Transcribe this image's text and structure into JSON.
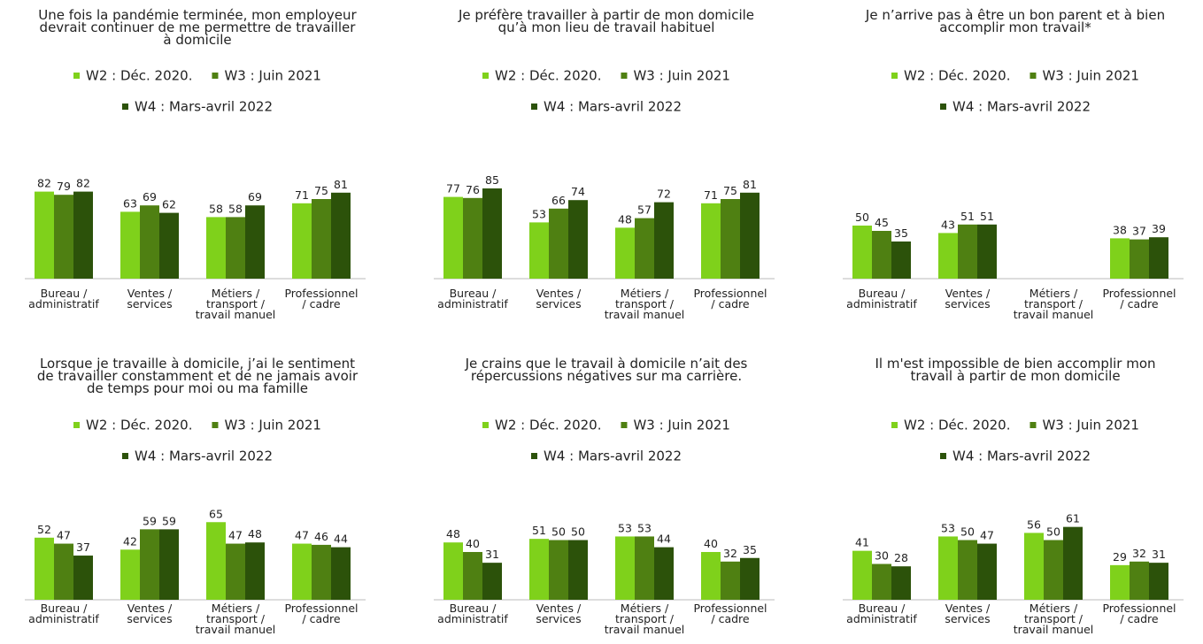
{
  "chart_data": [
    {
      "type": "bar",
      "title": "Une fois la pandémie terminée, mon employeur\ndevrait continuer de me permettre de travailler\nà domicile",
      "categories": [
        "Bureau  /\nadministratif",
        "Ventes /\nservices",
        "Métiers /\ntransport /\ntravail manuel",
        "Professionnel\n/ cadre"
      ],
      "series": [
        {
          "name": "W2 : Déc. 2020.",
          "color": "#7fd11b",
          "values": [
            82,
            63,
            58,
            71
          ]
        },
        {
          "name": "W3 : Juin 2021",
          "color": "#4f8012",
          "values": [
            79,
            69,
            58,
            75
          ]
        },
        {
          "name": "W4 : Mars-avril 2022",
          "color": "#2c520a",
          "values": [
            82,
            62,
            69,
            81
          ]
        }
      ]
    },
    {
      "type": "bar",
      "title": "Je préfère travailler à partir de mon domicile\nqu’à mon lieu de travail habituel",
      "categories": [
        "Bureau  /\nadministratif",
        "Ventes /\nservices",
        "Métiers /\ntransport /\ntravail manuel",
        "Professionnel\n/ cadre"
      ],
      "series": [
        {
          "name": "W2 : Déc. 2020.",
          "color": "#7fd11b",
          "values": [
            77,
            53,
            48,
            71
          ]
        },
        {
          "name": "W3 : Juin 2021",
          "color": "#4f8012",
          "values": [
            76,
            66,
            57,
            75
          ]
        },
        {
          "name": "W4 : Mars-avril 2022",
          "color": "#2c520a",
          "values": [
            85,
            74,
            72,
            81
          ]
        }
      ]
    },
    {
      "type": "bar",
      "title": "Je n’arrive pas à être un bon parent et à bien\naccomplir mon travail*",
      "categories": [
        "Bureau  /\nadministratif",
        "Ventes /\nservices",
        "Métiers /\ntransport /\ntravail manuel",
        "Professionnel\n/ cadre"
      ],
      "series": [
        {
          "name": "W2 : Déc. 2020.",
          "color": "#7fd11b",
          "values": [
            50,
            43,
            null,
            38
          ]
        },
        {
          "name": "W3 : Juin 2021",
          "color": "#4f8012",
          "values": [
            45,
            51,
            null,
            37
          ]
        },
        {
          "name": "W4 : Mars-avril 2022",
          "color": "#2c520a",
          "values": [
            35,
            51,
            null,
            39
          ]
        }
      ]
    },
    {
      "type": "bar",
      "title": "Lorsque je travaille à domicile, j’ai le sentiment\nde travailler constamment et de ne jamais avoir\nde temps pour moi ou ma famille",
      "categories": [
        "Bureau  /\nadministratif",
        "Ventes /\nservices",
        "Métiers /\ntransport /\ntravail manuel",
        "Professionnel\n/ cadre"
      ],
      "series": [
        {
          "name": "W2 : Déc. 2020.",
          "color": "#7fd11b",
          "values": [
            52,
            42,
            65,
            47
          ]
        },
        {
          "name": "W3 : Juin 2021",
          "color": "#4f8012",
          "values": [
            47,
            59,
            47,
            46
          ]
        },
        {
          "name": "W4 : Mars-avril 2022",
          "color": "#2c520a",
          "values": [
            37,
            59,
            48,
            44
          ]
        }
      ]
    },
    {
      "type": "bar",
      "title": "Je crains que le travail à domicile n’ait des\nrépercussions négatives sur ma carrière.",
      "categories": [
        "Bureau  /\nadministratif",
        "Ventes /\nservices",
        "Métiers /\ntransport /\ntravail manuel",
        "Professionnel\n/ cadre"
      ],
      "series": [
        {
          "name": "W2 : Déc. 2020.",
          "color": "#7fd11b",
          "values": [
            48,
            51,
            53,
            40
          ]
        },
        {
          "name": "W3 : Juin 2021",
          "color": "#4f8012",
          "values": [
            40,
            50,
            53,
            32
          ]
        },
        {
          "name": "W4 : Mars-avril 2022",
          "color": "#2c520a",
          "values": [
            31,
            50,
            44,
            35
          ]
        }
      ]
    },
    {
      "type": "bar",
      "title": "Il m'est impossible de bien accomplir mon\ntravail à partir de mon domicile",
      "categories": [
        "Bureau  /\nadministratif",
        "Ventes /\nservices",
        "Métiers /\ntransport /\ntravail manuel",
        "Professionnel\n/ cadre"
      ],
      "series": [
        {
          "name": "W2 : Déc. 2020.",
          "color": "#7fd11b",
          "values": [
            41,
            53,
            56,
            29
          ]
        },
        {
          "name": "W3 : Juin 2021",
          "color": "#4f8012",
          "values": [
            30,
            50,
            50,
            32
          ]
        },
        {
          "name": "W4 : Mars-avril 2022",
          "color": "#2c520a",
          "values": [
            28,
            47,
            61,
            31
          ]
        }
      ]
    }
  ]
}
